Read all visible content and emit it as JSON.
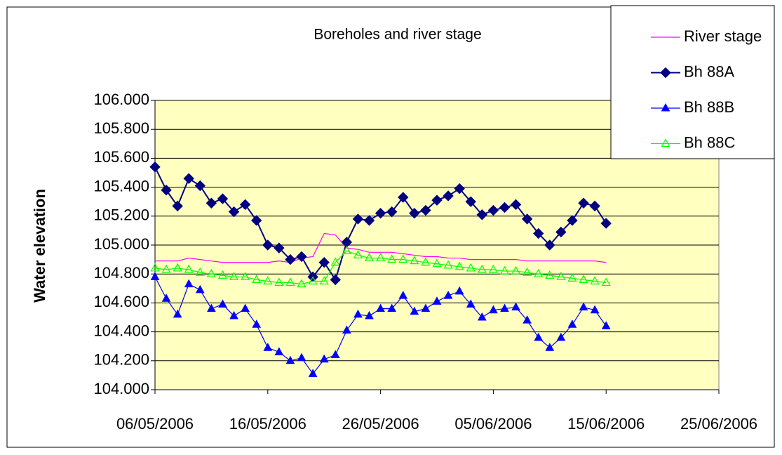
{
  "chart_data": {
    "type": "line",
    "title": "Boreholes and river stage",
    "y_label": "Water elevation",
    "x": [
      "2006-05-06",
      "2006-05-07",
      "2006-05-08",
      "2006-05-09",
      "2006-05-10",
      "2006-05-11",
      "2006-05-12",
      "2006-05-13",
      "2006-05-14",
      "2006-05-15",
      "2006-05-16",
      "2006-05-17",
      "2006-05-18",
      "2006-05-19",
      "2006-05-20",
      "2006-05-21",
      "2006-05-22",
      "2006-05-23",
      "2006-05-24",
      "2006-05-25",
      "2006-05-26",
      "2006-05-27",
      "2006-05-28",
      "2006-05-29",
      "2006-05-30",
      "2006-05-31",
      "2006-06-01",
      "2006-06-02",
      "2006-06-03",
      "2006-06-04",
      "2006-06-05",
      "2006-06-06",
      "2006-06-07",
      "2006-06-08",
      "2006-06-09",
      "2006-06-10",
      "2006-06-11",
      "2006-06-12",
      "2006-06-13",
      "2006-06-14",
      "2006-06-15"
    ],
    "series": [
      {
        "name": "River stage",
        "color": "#ff00ff",
        "marker": null,
        "values": [
          104.89,
          104.89,
          104.89,
          104.91,
          104.9,
          104.89,
          104.88,
          104.88,
          104.88,
          104.88,
          104.88,
          104.89,
          104.88,
          104.91,
          104.92,
          105.08,
          105.07,
          104.98,
          104.97,
          104.95,
          104.95,
          104.95,
          104.94,
          104.93,
          104.92,
          104.92,
          104.91,
          104.91,
          104.9,
          104.9,
          104.9,
          104.9,
          104.9,
          104.89,
          104.89,
          104.89,
          104.89,
          104.89,
          104.89,
          104.89,
          104.88
        ]
      },
      {
        "name": "Bh 88A",
        "color": "#000080",
        "marker": "diamond",
        "values": [
          105.54,
          105.38,
          105.27,
          105.46,
          105.41,
          105.29,
          105.32,
          105.23,
          105.28,
          105.17,
          105.0,
          104.98,
          104.9,
          104.92,
          104.78,
          104.88,
          104.76,
          105.02,
          105.18,
          105.17,
          105.22,
          105.23,
          105.33,
          105.22,
          105.24,
          105.31,
          105.34,
          105.39,
          105.3,
          105.21,
          105.24,
          105.26,
          105.28,
          105.18,
          105.08,
          105.0,
          105.09,
          105.17,
          105.29,
          105.27,
          105.15
        ]
      },
      {
        "name": "Bh 88B",
        "color": "#0000ff",
        "marker": "triangle",
        "values": [
          104.78,
          104.63,
          104.52,
          104.73,
          104.69,
          104.56,
          104.59,
          104.51,
          104.56,
          104.45,
          104.29,
          104.26,
          104.2,
          104.22,
          104.11,
          104.21,
          104.24,
          104.41,
          104.52,
          104.51,
          104.56,
          104.56,
          104.65,
          104.54,
          104.56,
          104.61,
          104.65,
          104.68,
          104.59,
          104.5,
          104.55,
          104.56,
          104.57,
          104.48,
          104.36,
          104.29,
          104.36,
          104.45,
          104.57,
          104.55,
          104.44
        ]
      },
      {
        "name": "Bh 88C",
        "color": "#00ff00",
        "marker": "triangle-open",
        "values": [
          104.84,
          104.83,
          104.84,
          104.83,
          104.81,
          104.8,
          104.79,
          104.78,
          104.78,
          104.76,
          104.75,
          104.74,
          104.74,
          104.73,
          104.75,
          104.75,
          104.88,
          104.96,
          104.93,
          104.91,
          104.91,
          104.9,
          104.9,
          104.89,
          104.88,
          104.87,
          104.86,
          104.85,
          104.84,
          104.83,
          104.83,
          104.82,
          104.82,
          104.81,
          104.8,
          104.79,
          104.78,
          104.77,
          104.76,
          104.75,
          104.74
        ]
      }
    ],
    "xlim": [
      "2006-05-06",
      "2006-06-25"
    ],
    "xticks": [
      {
        "value": "2006-05-06",
        "label": "06/05/2006"
      },
      {
        "value": "2006-05-16",
        "label": "16/05/2006"
      },
      {
        "value": "2006-05-26",
        "label": "26/05/2006"
      },
      {
        "value": "2006-06-05",
        "label": "05/06/2006"
      },
      {
        "value": "2006-06-15",
        "label": "15/06/2006"
      },
      {
        "value": "2006-06-25",
        "label": "25/06/2006"
      }
    ],
    "ylim": [
      104,
      106
    ],
    "yticks": [
      {
        "value": 104,
        "label": "104.000"
      },
      {
        "value": 104.2,
        "label": "104.200"
      },
      {
        "value": 104.4,
        "label": "104.400"
      },
      {
        "value": 104.6,
        "label": "104.600"
      },
      {
        "value": 104.8,
        "label": "104.800"
      },
      {
        "value": 105,
        "label": "105.000"
      },
      {
        "value": 105.2,
        "label": "105.200"
      },
      {
        "value": 105.4,
        "label": "105.400"
      },
      {
        "value": 105.6,
        "label": "105.600"
      },
      {
        "value": 105.8,
        "label": "105.800"
      },
      {
        "value": 106,
        "label": "106.000"
      }
    ],
    "grid": true,
    "legend": "top-right",
    "plot_background": "#ffffc0"
  }
}
